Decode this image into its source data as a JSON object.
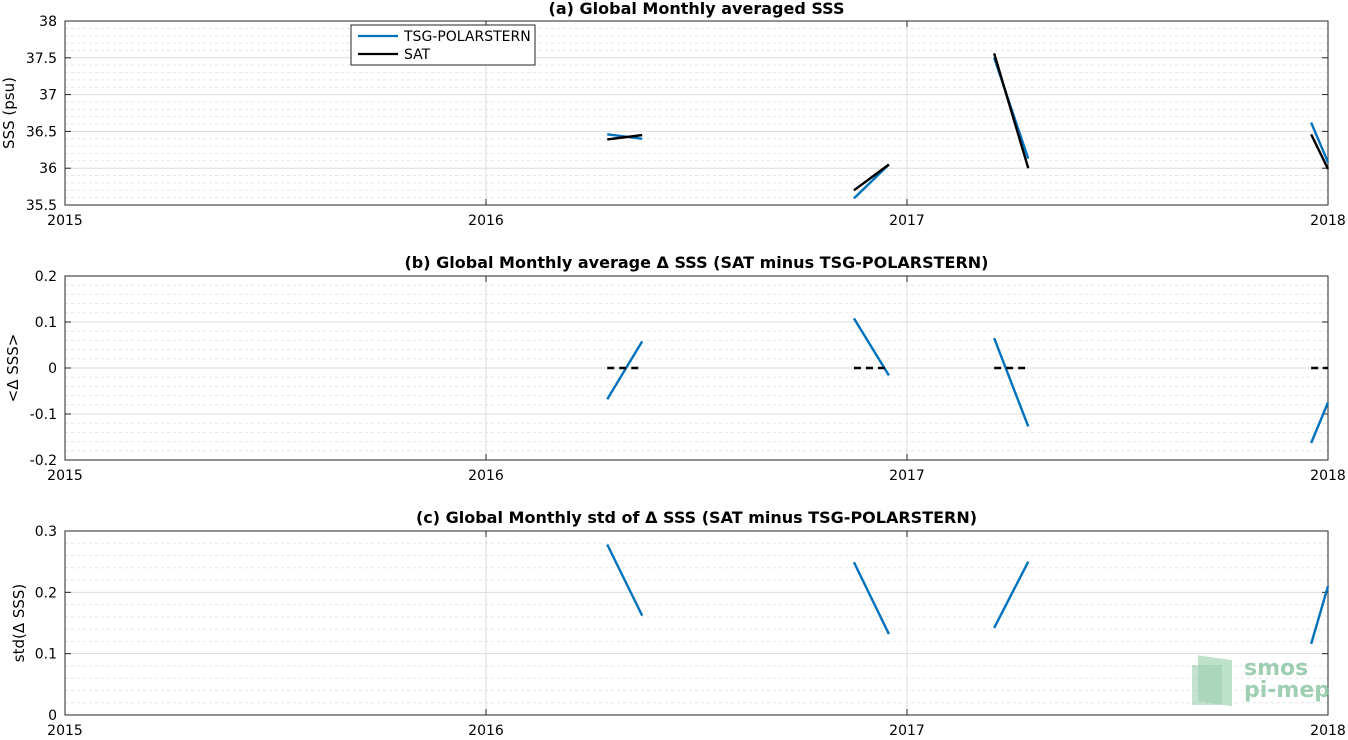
{
  "colors": {
    "tsg": "#0072BD",
    "sat": "#000000"
  },
  "logo": {
    "line1": "smos",
    "line2": "pi-mep"
  },
  "chart_data": [
    {
      "type": "line",
      "title": "(a) Global Monthly averaged SSS",
      "ylabel": "SSS (psu)",
      "xlabel": "",
      "xlim": [
        2015,
        2018
      ],
      "ylim": [
        35.5,
        38
      ],
      "xticks": [
        2015,
        2016,
        2017,
        2018
      ],
      "xtick_labels": [
        "2015",
        "2016",
        "2017",
        "2018"
      ],
      "yticks": [
        35.5,
        36,
        36.5,
        37,
        37.5,
        38
      ],
      "ytick_labels": [
        "35.5",
        "36",
        "36.5",
        "37",
        "37.5",
        "38"
      ],
      "grid": true,
      "legend": {
        "placement": "top-left",
        "entries": [
          "TSG-POLARSTERN",
          "SAT"
        ]
      },
      "series": [
        {
          "name": "TSG-POLARSTERN",
          "color": "#0072BD",
          "dashed": false,
          "segments": [
            [
              [
                2016.288,
                36.46
              ],
              [
                2016.371,
                36.4
              ]
            ],
            [
              [
                2016.874,
                35.59
              ],
              [
                2016.957,
                36.05
              ]
            ],
            [
              [
                2017.207,
                37.5
              ],
              [
                2017.288,
                36.13
              ]
            ],
            [
              [
                2017.96,
                36.62
              ],
              [
                2018.0,
                36.08
              ]
            ]
          ]
        },
        {
          "name": "SAT",
          "color": "#000000",
          "dashed": false,
          "segments": [
            [
              [
                2016.288,
                36.39
              ],
              [
                2016.371,
                36.45
              ]
            ],
            [
              [
                2016.874,
                35.7
              ],
              [
                2016.957,
                36.05
              ]
            ],
            [
              [
                2017.207,
                37.56
              ],
              [
                2017.288,
                36.0
              ]
            ],
            [
              [
                2017.96,
                36.46
              ],
              [
                2018.0,
                35.99
              ]
            ]
          ]
        }
      ]
    },
    {
      "type": "line",
      "title": "(b) Global Monthly average Δ SSS (SAT minus TSG-POLARSTERN)",
      "ylabel": "<Δ SSS>",
      "xlabel": "",
      "xlim": [
        2015,
        2018
      ],
      "ylim": [
        -0.2,
        0.2
      ],
      "xticks": [
        2015,
        2016,
        2017,
        2018
      ],
      "xtick_labels": [
        "2015",
        "2016",
        "2017",
        "2018"
      ],
      "yticks": [
        -0.2,
        -0.1,
        0,
        0.1,
        0.2
      ],
      "ytick_labels": [
        "-0.2",
        "-0.1",
        "0",
        "0.1",
        "0.2"
      ],
      "grid": true,
      "series": [
        {
          "color": "#0072BD",
          "dashed": false,
          "segments": [
            [
              [
                2016.288,
                -0.068
              ],
              [
                2016.371,
                0.058
              ]
            ],
            [
              [
                2016.874,
                0.108
              ],
              [
                2016.957,
                -0.016
              ]
            ],
            [
              [
                2017.207,
                0.065
              ],
              [
                2017.288,
                -0.127
              ]
            ],
            [
              [
                2017.96,
                -0.163
              ],
              [
                2018.0,
                -0.075
              ]
            ]
          ]
        },
        {
          "color": "#000000",
          "dashed": true,
          "segments": [
            [
              [
                2016.288,
                0
              ],
              [
                2016.371,
                0
              ]
            ],
            [
              [
                2016.874,
                0
              ],
              [
                2016.957,
                0
              ]
            ],
            [
              [
                2017.207,
                0
              ],
              [
                2017.288,
                0
              ]
            ],
            [
              [
                2017.96,
                0
              ],
              [
                2018.0,
                0
              ]
            ]
          ]
        }
      ]
    },
    {
      "type": "line",
      "title": "(c) Global Monthly std of Δ SSS (SAT minus TSG-POLARSTERN)",
      "ylabel": "std(Δ SSS)",
      "xlabel": "",
      "xlim": [
        2015,
        2018
      ],
      "ylim": [
        0,
        0.3
      ],
      "xticks": [
        2015,
        2016,
        2017,
        2018
      ],
      "xtick_labels": [
        "2015",
        "2016",
        "2017",
        "2018"
      ],
      "yticks": [
        0,
        0.1,
        0.2,
        0.3
      ],
      "ytick_labels": [
        "0",
        "0.1",
        "0.2",
        "0.3"
      ],
      "grid": true,
      "series": [
        {
          "color": "#0072BD",
          "dashed": false,
          "segments": [
            [
              [
                2016.288,
                0.278
              ],
              [
                2016.371,
                0.162
              ]
            ],
            [
              [
                2016.874,
                0.249
              ],
              [
                2016.957,
                0.132
              ]
            ],
            [
              [
                2017.207,
                0.142
              ],
              [
                2017.288,
                0.25
              ]
            ],
            [
              [
                2017.96,
                0.116
              ],
              [
                2018.0,
                0.21
              ]
            ]
          ]
        }
      ]
    }
  ]
}
